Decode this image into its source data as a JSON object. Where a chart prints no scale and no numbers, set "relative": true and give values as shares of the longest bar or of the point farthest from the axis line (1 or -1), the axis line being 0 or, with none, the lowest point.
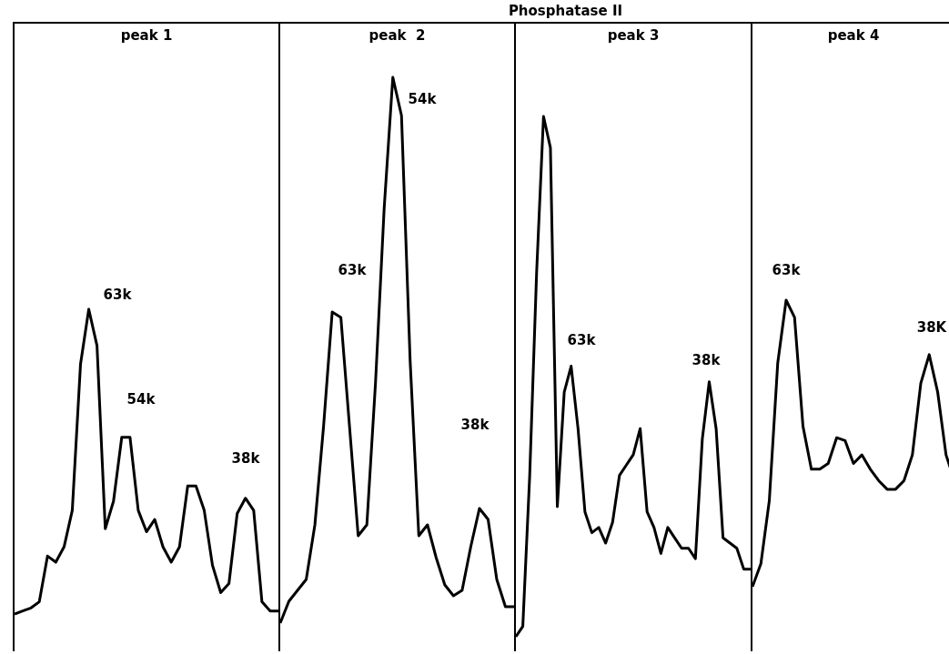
{
  "chart_data": [
    {
      "type": "line",
      "title": "peak 1",
      "relative": true,
      "marker": "none",
      "annotations": [
        "Phosphatase II",
        "63k",
        "54k",
        "38k"
      ],
      "categories": [
        null,
        null,
        null,
        null,
        null,
        null,
        null,
        null,
        null,
        null,
        null,
        null,
        null,
        null,
        null,
        null,
        null,
        null,
        null,
        null,
        null,
        null,
        null,
        null,
        null,
        null,
        null,
        null,
        null,
        null,
        null,
        null,
        null
      ],
      "series": [
        {
          "color": "#000000",
          "values": [
            0,
            0.01,
            0.02,
            0.04,
            0.19,
            0.17,
            0.22,
            0.34,
            0.82,
            1,
            0.88,
            0.28,
            0.37,
            0.58,
            0.58,
            0.34,
            0.27,
            0.31,
            0.22,
            0.17,
            0.22,
            0.42,
            0.42,
            0.34,
            0.16,
            0.07,
            0.1,
            0.33,
            0.38,
            0.34,
            0.04,
            0.01,
            0.01
          ]
        }
      ]
    },
    {
      "type": "line",
      "title": "peak  2",
      "relative": true,
      "marker": "none",
      "annotations": [
        "63k",
        "54k",
        "38k"
      ],
      "categories": [
        null,
        null,
        null,
        null,
        null,
        null,
        null,
        null,
        null,
        null,
        null,
        null,
        null,
        null,
        null,
        null,
        null,
        null,
        null,
        null,
        null,
        null,
        null,
        null,
        null,
        null,
        null,
        null
      ],
      "series": [
        {
          "color": "#000000",
          "values": [
            0,
            0.04,
            0.06,
            0.08,
            0.18,
            0.36,
            0.57,
            0.56,
            0.36,
            0.16,
            0.18,
            0.44,
            0.76,
            1,
            0.93,
            0.48,
            0.16,
            0.18,
            0.12,
            0.07,
            0.05,
            0.06,
            0.14,
            0.21,
            0.19,
            0.08,
            0.03,
            0.03
          ]
        }
      ]
    },
    {
      "type": "line",
      "title": "peak 3",
      "relative": true,
      "marker": "none",
      "annotations": [
        "63k",
        "38k"
      ],
      "categories": [
        null,
        null,
        null,
        null,
        null,
        null,
        null,
        null,
        null,
        null,
        null,
        null,
        null,
        null,
        null,
        null,
        null,
        null,
        null,
        null,
        null,
        null,
        null,
        null,
        null,
        null,
        null,
        null,
        null,
        null,
        null,
        null,
        null,
        null,
        null
      ],
      "series": [
        {
          "color": "#000000",
          "values": [
            0,
            0.02,
            0.31,
            0.7,
            1,
            0.94,
            0.25,
            0.47,
            0.52,
            0.4,
            0.24,
            0.2,
            0.21,
            0.18,
            0.22,
            0.31,
            0.33,
            0.35,
            0.4,
            0.24,
            0.21,
            0.16,
            0.21,
            0.19,
            0.17,
            0.17,
            0.15,
            0.38,
            0.49,
            0.4,
            0.19,
            0.18,
            0.17,
            0.13,
            0.13
          ]
        }
      ]
    },
    {
      "type": "line",
      "title": "peak 4",
      "relative": true,
      "marker": "none",
      "annotations": [
        "63k",
        "38K"
      ],
      "categories": [
        null,
        null,
        null,
        null,
        null,
        null,
        null,
        null,
        null,
        null,
        null,
        null,
        null,
        null,
        null,
        null,
        null,
        null,
        null,
        null,
        null,
        null,
        null,
        null,
        null
      ],
      "series": [
        {
          "color": "#000000",
          "values": [
            0,
            0.08,
            0.3,
            0.78,
            1,
            0.94,
            0.56,
            0.41,
            0.41,
            0.43,
            0.52,
            0.51,
            0.43,
            0.46,
            0.41,
            0.37,
            0.34,
            0.34,
            0.37,
            0.46,
            0.71,
            0.81,
            0.68,
            0.46,
            0.37
          ]
        }
      ]
    }
  ]
}
